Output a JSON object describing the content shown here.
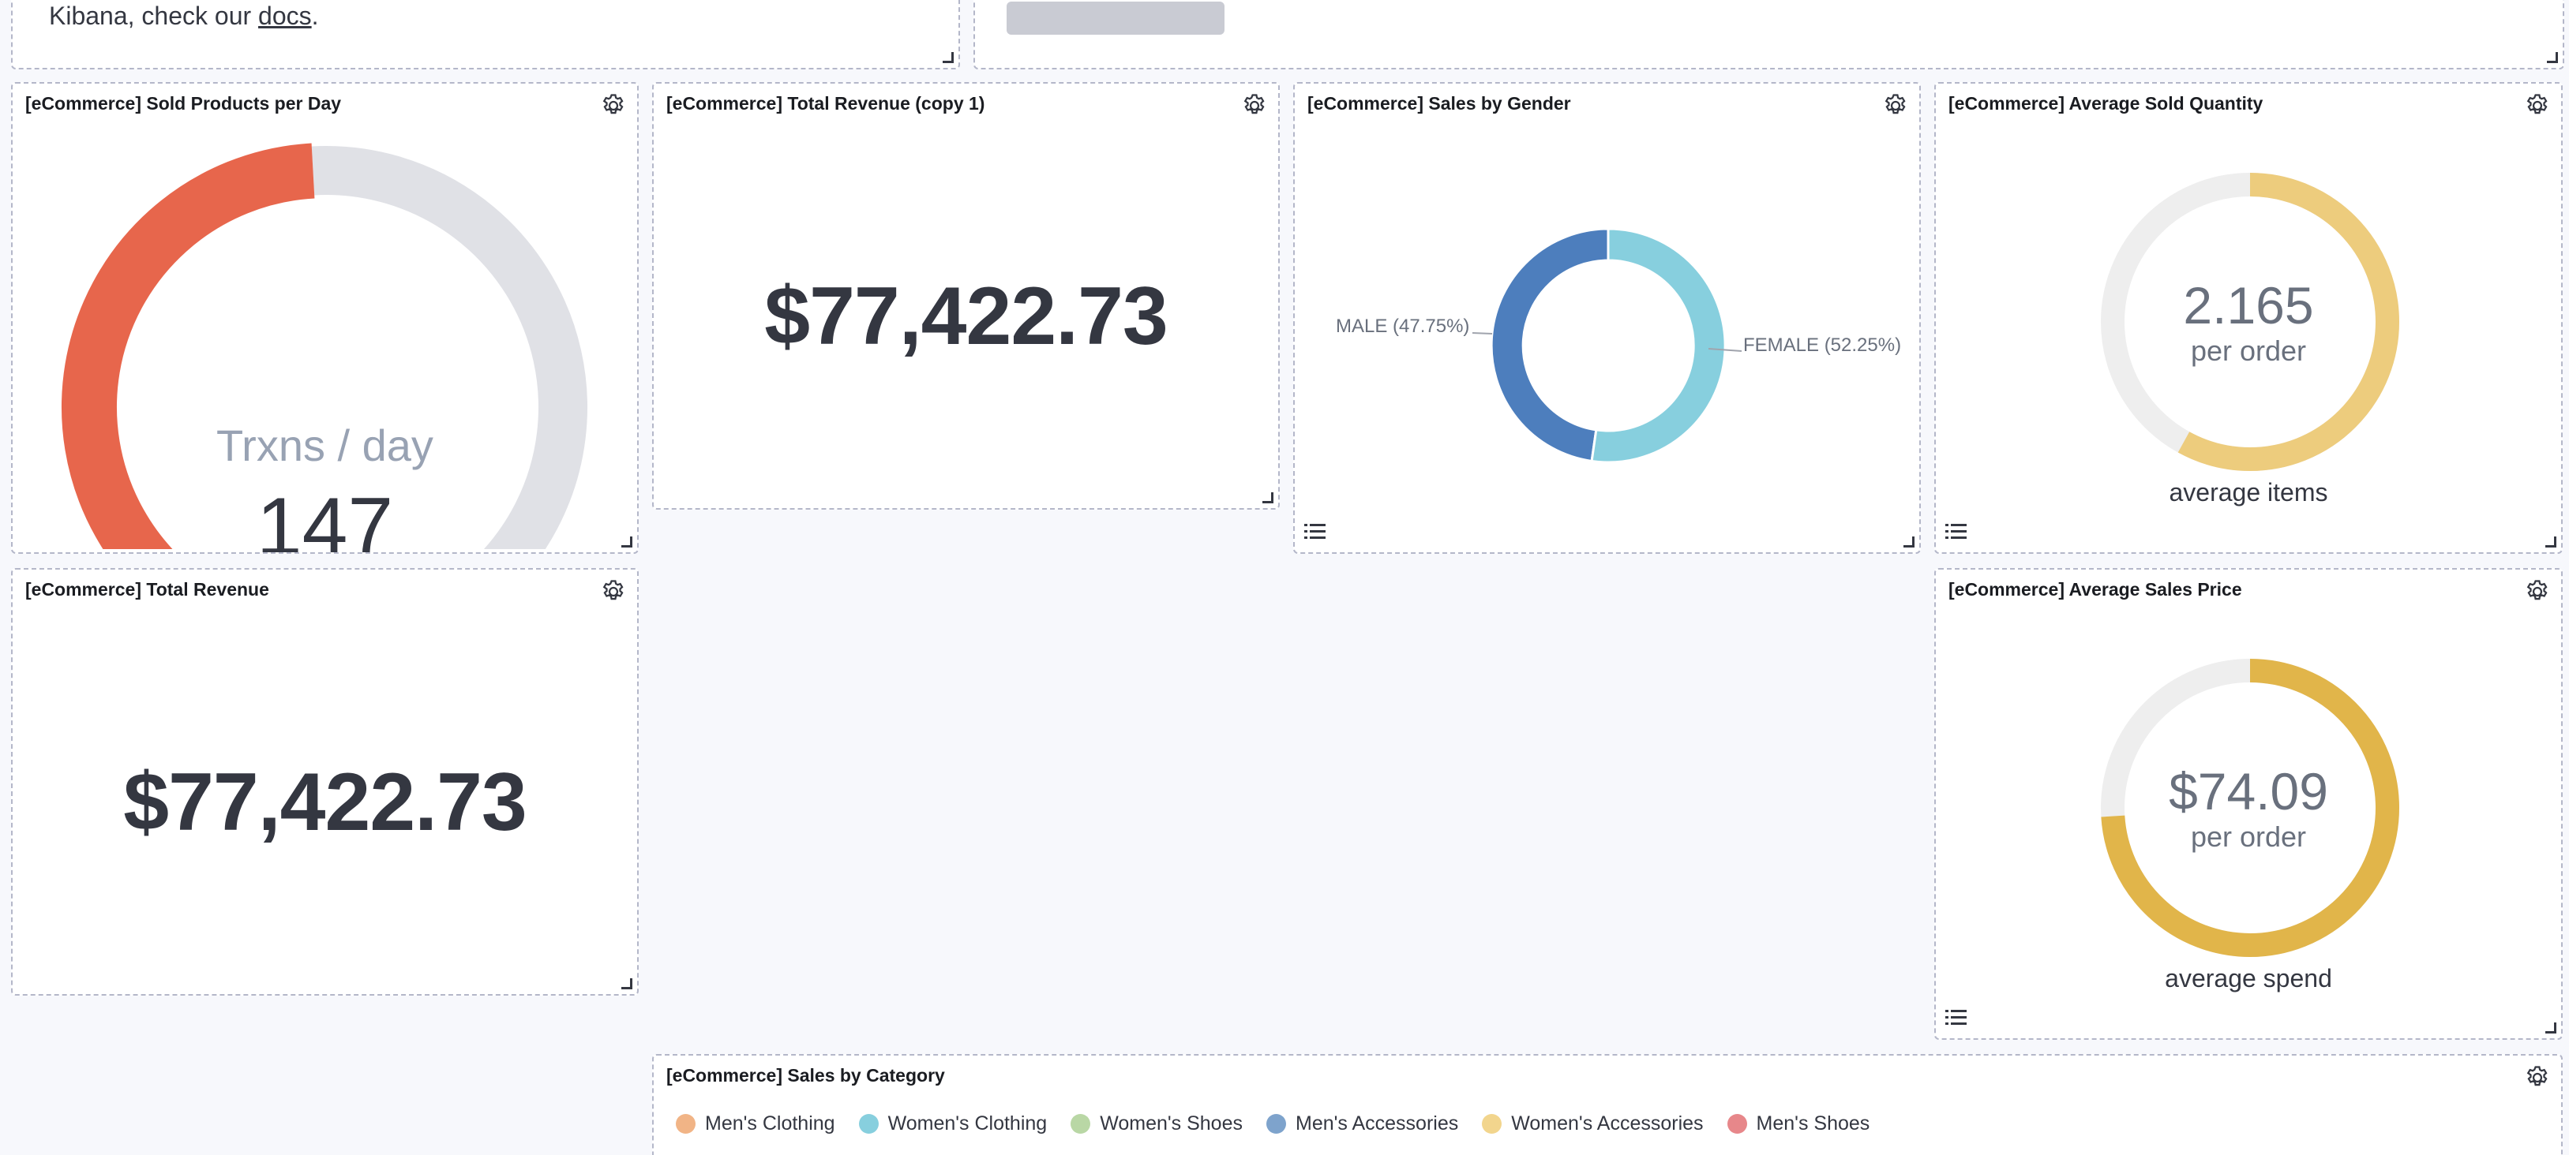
{
  "top_left_panel": {
    "text_before": "Kibana, check our ",
    "link": "docs",
    "text_after": "."
  },
  "panels": {
    "sold_products": {
      "title": "[eCommerce] Sold Products per Day",
      "label": "Trxns / day",
      "value": "147",
      "fill_fraction": 0.49,
      "fill_color": "#e7664c",
      "track_color": "#e0e1e6"
    },
    "total_revenue_copy": {
      "title": "[eCommerce] Total Revenue (copy 1)",
      "value": "$77,422.73"
    },
    "sales_by_gender": {
      "title": "[eCommerce] Sales by Gender",
      "slices": [
        {
          "label": "MALE (47.75%)",
          "value": 47.75,
          "color": "#4d7ebd"
        },
        {
          "label": "FEMALE (52.25%)",
          "value": 52.25,
          "color": "#87cfde"
        }
      ]
    },
    "avg_sold_quantity": {
      "title": "[eCommerce] Average Sold Quantity",
      "value": "2.165",
      "unit": "per order",
      "caption": "average items",
      "fill_fraction": 0.58,
      "fill_color": "#edcc7d",
      "track_color": "#eeeeee"
    },
    "total_revenue": {
      "title": "[eCommerce] Total Revenue",
      "value": "$77,422.73"
    },
    "avg_sales_price": {
      "title": "[eCommerce] Average Sales Price",
      "value": "$74.09",
      "unit": "per order",
      "caption": "average spend",
      "fill_fraction": 0.74,
      "fill_color": "#e1b54a",
      "track_color": "#eeeeee"
    },
    "sales_by_category": {
      "title": "[eCommerce] Sales by Category",
      "legend": [
        {
          "label": "Men's Clothing",
          "color": "#f1b486"
        },
        {
          "label": "Women's Clothing",
          "color": "#87cfde"
        },
        {
          "label": "Women's Shoes",
          "color": "#b9d7a5"
        },
        {
          "label": "Men's Accessories",
          "color": "#7ea3cc"
        },
        {
          "label": "Women's Accessories",
          "color": "#f2d58d"
        },
        {
          "label": "Men's Shoes",
          "color": "#e7878a"
        }
      ]
    }
  },
  "icons": {
    "settings": "gear-icon",
    "legend": "list-icon",
    "resize": "resize-handle-icon"
  }
}
